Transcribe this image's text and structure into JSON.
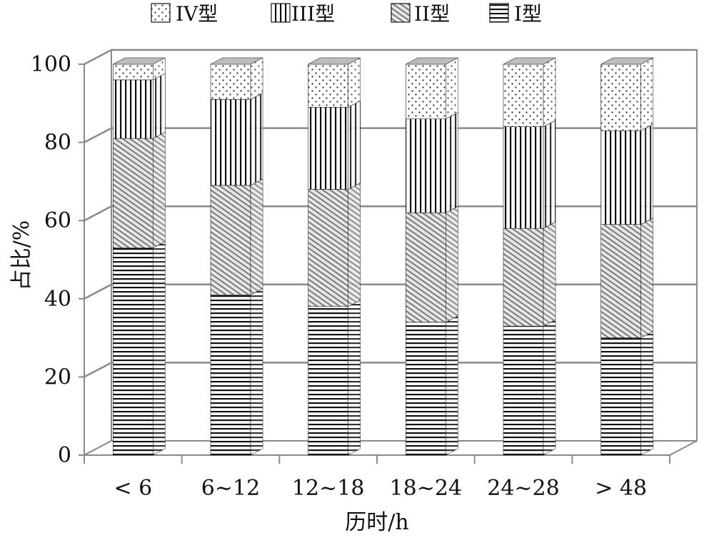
{
  "chart_data": {
    "type": "bar",
    "stacked": true,
    "three_d": true,
    "xlabel": "历时/h",
    "ylabel": "占比/%",
    "ylim": [
      0,
      100
    ],
    "yticks": [
      "0",
      "20",
      "40",
      "60",
      "80",
      "100"
    ],
    "grid": true,
    "legend_position": "top",
    "categories": [
      "< 6",
      "6~12",
      "12~18",
      "18~24",
      "24~28",
      "> 48"
    ],
    "series": [
      {
        "name": "I型",
        "pattern": "horizontal-lines",
        "values": [
          53,
          41,
          38,
          34,
          33,
          30
        ]
      },
      {
        "name": "II型",
        "pattern": "diagonal-hatch",
        "values": [
          28,
          28,
          30,
          28,
          25,
          29
        ]
      },
      {
        "name": "III型",
        "pattern": "vertical-lines",
        "values": [
          15,
          22,
          21,
          24,
          26,
          24
        ]
      },
      {
        "name": "IV型",
        "pattern": "dots",
        "values": [
          4,
          9,
          11,
          14,
          16,
          17
        ]
      }
    ],
    "legend_order": [
      "IV型",
      "III型",
      "II型",
      "I型"
    ],
    "colors": {
      "wall": "#8a8a8a",
      "top": "#bdbdbd",
      "ink": "#111111"
    }
  }
}
